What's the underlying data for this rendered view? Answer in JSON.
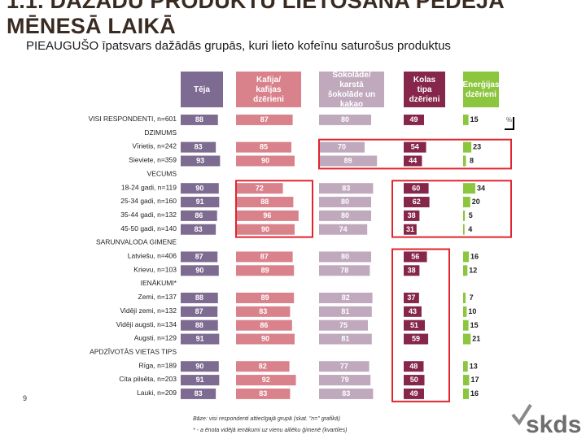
{
  "page": {
    "banner_title": "1.1. DAŽĀDU PRODUKTU LIETOŠANA PĒDĒJĀ MĒNESĀ LAIKĀ",
    "subtitle": "PIEAUGUŠO īpatsvars dažādās grupās, kuri lieto kofeīnu saturošus produktus",
    "page_number": "9",
    "tick_label": "%",
    "footnote_base": "Bāze: visi respondenti attiecīgajā grupā (skat. \"n=\" grafikā)",
    "footnote_mark": "* - a ēnota vidējā ienākumi uz vienu ailiēku ģimenē (kvartiles)",
    "logo_text": "skds"
  },
  "chart_data": {
    "type": "table",
    "title": "PIEAUGUŠO īpatsvars dažādās grupās, kuri lieto kofeīnu saturošus produktus",
    "unit": "%",
    "columns": [
      "Tēja",
      "Kafija/ kafijas dzērieni",
      "Šokolāde/ karstā šokolāde un kakao",
      "Kolas tipa dzērieni",
      "Enerģijas dzērieni"
    ],
    "column_colors": [
      "#7d6b91",
      "#d9828c",
      "#c0a9bd",
      "#86264a",
      "#8cc63e"
    ],
    "rows": [
      {
        "label": "VISI RESPONDENTI, n=601",
        "header": false,
        "values": [
          88,
          87,
          80,
          49,
          15
        ]
      },
      {
        "label": "DZIMUMS",
        "header": true,
        "values": null
      },
      {
        "label": "Vīrietis, n=242",
        "header": false,
        "values": [
          83,
          85,
          70,
          54,
          23
        ]
      },
      {
        "label": "Sieviete, n=359",
        "header": false,
        "values": [
          93,
          90,
          89,
          44,
          8
        ]
      },
      {
        "label": "VECUMS",
        "header": true,
        "values": null
      },
      {
        "label": "18-24 gadi, n=119",
        "header": false,
        "values": [
          90,
          72,
          83,
          60,
          34
        ]
      },
      {
        "label": "25-34 gadi, n=160",
        "header": false,
        "values": [
          91,
          88,
          80,
          62,
          20
        ]
      },
      {
        "label": "35-44 gadi, n=132",
        "header": false,
        "values": [
          86,
          96,
          80,
          38,
          5
        ]
      },
      {
        "label": "45-50 gadi, n=140",
        "header": false,
        "values": [
          83,
          90,
          74,
          31,
          4
        ]
      },
      {
        "label": "SARUNVALODA GIMENE",
        "header": true,
        "values": null
      },
      {
        "label": "Latviešu, n=406",
        "header": false,
        "values": [
          87,
          87,
          80,
          56,
          16
        ]
      },
      {
        "label": "Krievu, n=103",
        "header": false,
        "values": [
          90,
          89,
          78,
          38,
          12
        ]
      },
      {
        "label": "IENĀKUMI*",
        "header": true,
        "values": null
      },
      {
        "label": "Zemi, n=137",
        "header": false,
        "values": [
          88,
          89,
          82,
          37,
          7
        ]
      },
      {
        "label": "Vidēji zemi, n=132",
        "header": false,
        "values": [
          87,
          83,
          81,
          43,
          10
        ]
      },
      {
        "label": "Vidēji augsti, n=134",
        "header": false,
        "values": [
          88,
          86,
          75,
          51,
          15
        ]
      },
      {
        "label": "Augsti, n=129",
        "header": false,
        "values": [
          91,
          90,
          81,
          59,
          21
        ]
      },
      {
        "label": "APDZĪVOTĀS VIETAS TIPS",
        "header": true,
        "values": null
      },
      {
        "label": "Rīga, n=189",
        "header": false,
        "values": [
          90,
          82,
          77,
          48,
          13
        ]
      },
      {
        "label": "Cita pilsēta, n=203",
        "header": false,
        "values": [
          91,
          92,
          79,
          50,
          17
        ]
      },
      {
        "label": "Lauki, n=209",
        "header": false,
        "values": [
          83,
          83,
          83,
          49,
          16
        ]
      }
    ],
    "highlight_color": "#e0252e"
  }
}
